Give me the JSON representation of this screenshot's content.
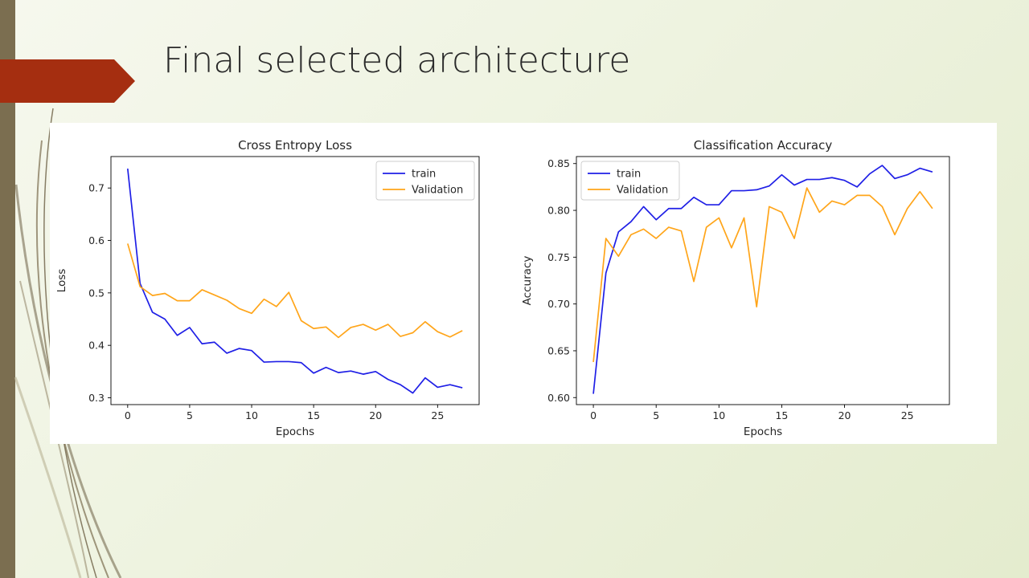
{
  "slide": {
    "title": "Final selected architecture"
  },
  "colors": {
    "accent_arrow": "#a52e10",
    "left_bar": "#7b6e50",
    "train": "#1f1fe6",
    "validation": "#ffa51a"
  },
  "chart_data": [
    {
      "type": "line",
      "title": "Cross Entropy Loss",
      "xlabel": "Epochs",
      "ylabel": "Loss",
      "xlim": [
        -1.35,
        28.35
      ],
      "ylim": [
        0.287,
        0.76
      ],
      "xticks": [
        0,
        5,
        10,
        15,
        20,
        25
      ],
      "yticks": [
        0.3,
        0.4,
        0.5,
        0.6,
        0.7
      ],
      "ytick_labels": [
        "0.3",
        "0.4",
        "0.5",
        "0.6",
        "0.7"
      ],
      "legend_position": "upper-right",
      "x": [
        0,
        1,
        2,
        3,
        4,
        5,
        6,
        7,
        8,
        9,
        10,
        11,
        12,
        13,
        14,
        15,
        16,
        17,
        18,
        19,
        20,
        21,
        22,
        23,
        24,
        25,
        26,
        27
      ],
      "series": [
        {
          "name": "train",
          "color": "#1f1fe6",
          "values": [
            0.737,
            0.518,
            0.463,
            0.45,
            0.419,
            0.434,
            0.403,
            0.406,
            0.385,
            0.394,
            0.39,
            0.368,
            0.369,
            0.369,
            0.367,
            0.347,
            0.358,
            0.348,
            0.351,
            0.345,
            0.35,
            0.335,
            0.325,
            0.309,
            0.338,
            0.32,
            0.325,
            0.319
          ]
        },
        {
          "name": "Validation",
          "color": "#ffa51a",
          "values": [
            0.594,
            0.512,
            0.495,
            0.499,
            0.485,
            0.485,
            0.506,
            0.496,
            0.486,
            0.47,
            0.461,
            0.488,
            0.474,
            0.501,
            0.447,
            0.432,
            0.435,
            0.415,
            0.434,
            0.44,
            0.429,
            0.44,
            0.417,
            0.424,
            0.445,
            0.426,
            0.416,
            0.428
          ]
        }
      ]
    },
    {
      "type": "line",
      "title": "Classification Accuracy",
      "xlabel": "Epochs",
      "ylabel": "Accuracy",
      "xlim": [
        -1.35,
        28.35
      ],
      "ylim": [
        0.5925,
        0.8575
      ],
      "xticks": [
        0,
        5,
        10,
        15,
        20,
        25
      ],
      "yticks": [
        0.6,
        0.65,
        0.7,
        0.75,
        0.8,
        0.85
      ],
      "ytick_labels": [
        "0.60",
        "0.65",
        "0.70",
        "0.75",
        "0.80",
        "0.85"
      ],
      "legend_position": "upper-left",
      "x": [
        0,
        1,
        2,
        3,
        4,
        5,
        6,
        7,
        8,
        9,
        10,
        11,
        12,
        13,
        14,
        15,
        16,
        17,
        18,
        19,
        20,
        21,
        22,
        23,
        24,
        25,
        26,
        27
      ],
      "series": [
        {
          "name": "train",
          "color": "#1f1fe6",
          "values": [
            0.604,
            0.733,
            0.777,
            0.788,
            0.804,
            0.79,
            0.802,
            0.802,
            0.814,
            0.806,
            0.806,
            0.821,
            0.821,
            0.822,
            0.826,
            0.838,
            0.827,
            0.833,
            0.833,
            0.835,
            0.832,
            0.825,
            0.839,
            0.848,
            0.834,
            0.838,
            0.845,
            0.841
          ]
        },
        {
          "name": "Validation",
          "color": "#ffa51a",
          "values": [
            0.638,
            0.77,
            0.751,
            0.774,
            0.78,
            0.77,
            0.782,
            0.778,
            0.724,
            0.782,
            0.792,
            0.76,
            0.792,
            0.697,
            0.804,
            0.798,
            0.77,
            0.824,
            0.798,
            0.81,
            0.806,
            0.816,
            0.816,
            0.804,
            0.774,
            0.802,
            0.82,
            0.802
          ]
        }
      ]
    }
  ]
}
